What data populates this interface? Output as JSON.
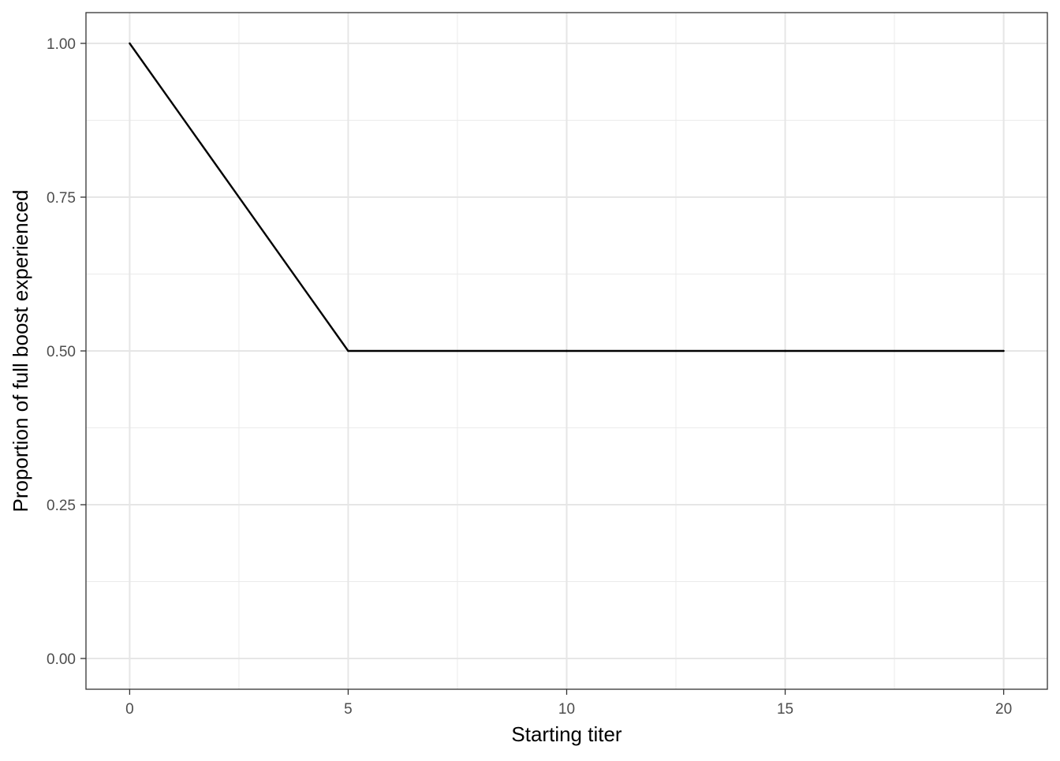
{
  "chart_data": {
    "type": "line",
    "title": "",
    "xlabel": "Starting titer",
    "ylabel": "Proportion of full boost experienced",
    "xlim": [
      -1,
      21
    ],
    "ylim": [
      -0.05,
      1.05
    ],
    "x_ticks": [
      0,
      5,
      10,
      15,
      20
    ],
    "x_tick_labels": [
      "0",
      "5",
      "10",
      "15",
      "20"
    ],
    "y_ticks": [
      0,
      0.25,
      0.5,
      0.75,
      1.0
    ],
    "y_tick_labels": [
      "0.00",
      "0.25",
      "0.50",
      "0.75",
      "1.00"
    ],
    "grid": true,
    "legend": "none",
    "series": [
      {
        "color": "#000000",
        "x": [
          0,
          5,
          10,
          15,
          20
        ],
        "y": [
          1.0,
          0.5,
          0.5,
          0.5,
          0.5
        ]
      }
    ]
  }
}
